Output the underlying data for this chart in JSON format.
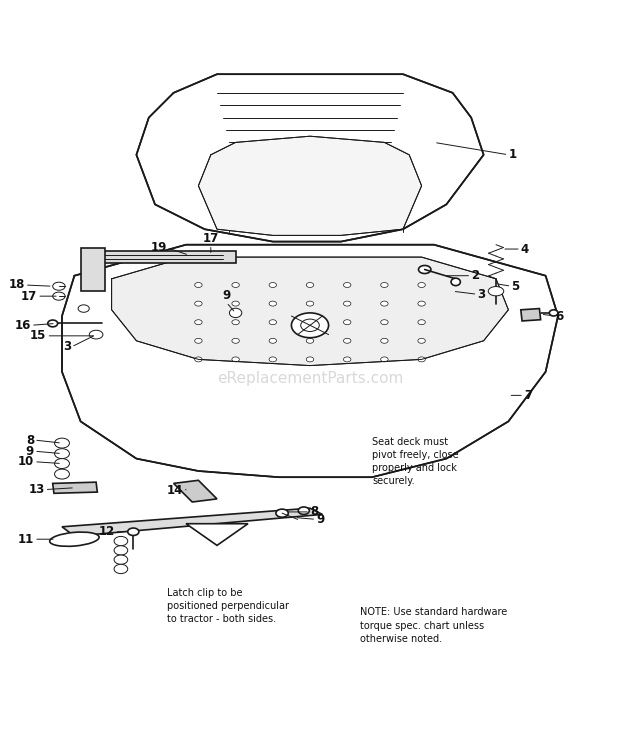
{
  "background_color": "#ffffff",
  "watermark": "eReplacementParts.com",
  "watermark_color": "#aaaaaa",
  "watermark_alpha": 0.45,
  "line_color": "#1a1a1a",
  "label_color": "#111111",
  "note_bottom_left": "Latch clip to be\npositioned perpendicular\nto tractor - both sides.",
  "note_mid_right": "Seat deck must\npivot freely, close\nproperly and lock\nsecurely.",
  "note_bottom_right": "NOTE: Use standard hardware\ntorque spec. chart unless\notherwise noted."
}
